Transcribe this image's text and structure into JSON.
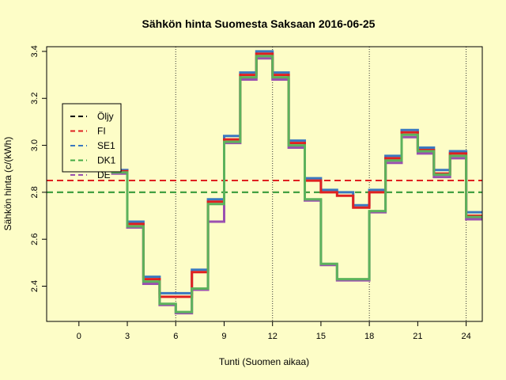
{
  "chart_data": {
    "type": "line",
    "title": "Sähkön hinta Suomesta Saksaan 2016-06-25",
    "xlabel": "Tunti (Suomen aikaa)",
    "ylabel": "Sähkön hinta (c/(kWh)",
    "xlim": [
      -2,
      25
    ],
    "ylim": [
      2.25,
      3.42
    ],
    "x_ticks": [
      0,
      3,
      6,
      9,
      12,
      15,
      18,
      21,
      24
    ],
    "y_ticks": [
      2.4,
      2.6,
      2.8,
      3.0,
      3.2,
      3.4
    ],
    "y_tick_labels": [
      "2.4",
      "2.6",
      "2.8",
      "3.0",
      "3.2",
      "3.4"
    ],
    "vlines": [
      6,
      12,
      18,
      24
    ],
    "step_x": [
      2,
      3,
      4,
      5,
      6,
      7,
      8,
      9,
      10,
      11,
      12,
      13,
      14,
      15,
      16,
      17,
      18,
      19,
      20,
      21,
      22,
      23,
      24,
      25
    ],
    "hlines": [
      {
        "name": "Öljy",
        "value": 2.8,
        "color": "#000000"
      },
      {
        "name": "FI",
        "value": 2.85,
        "color": "#df2020"
      },
      {
        "name": "DK1",
        "value": 2.8,
        "color": "#44aa44"
      }
    ],
    "series": [
      {
        "name": "SE1",
        "color": "#3a78c0",
        "values": [
          2.895,
          2.675,
          2.44,
          2.37,
          2.37,
          2.47,
          2.77,
          3.04,
          3.31,
          3.4,
          3.31,
          3.02,
          2.86,
          2.81,
          2.8,
          2.745,
          2.81,
          2.955,
          3.065,
          2.99,
          2.895,
          2.975,
          2.715
        ]
      },
      {
        "name": "DE",
        "color": "#9a50b0",
        "values": [
          2.88,
          2.65,
          2.41,
          2.32,
          2.285,
          2.385,
          2.675,
          3.01,
          3.28,
          3.37,
          3.28,
          2.99,
          2.765,
          2.49,
          2.425,
          2.425,
          2.715,
          2.925,
          3.035,
          2.965,
          2.865,
          2.945,
          2.685
        ]
      },
      {
        "name": "FI",
        "color": "#df2020",
        "values": [
          2.89,
          2.665,
          2.43,
          2.355,
          2.355,
          2.46,
          2.76,
          3.025,
          3.3,
          3.39,
          3.3,
          3.01,
          2.85,
          2.8,
          2.785,
          2.735,
          2.8,
          2.945,
          3.055,
          2.98,
          2.88,
          2.965,
          2.7
        ]
      },
      {
        "name": "DK1",
        "color": "#5cb25c",
        "values": [
          2.885,
          2.655,
          2.42,
          2.325,
          2.29,
          2.39,
          2.75,
          3.015,
          3.29,
          3.38,
          3.29,
          3.0,
          2.77,
          2.495,
          2.43,
          2.43,
          2.72,
          2.935,
          3.045,
          2.975,
          2.875,
          2.955,
          2.695
        ]
      }
    ],
    "legend": {
      "placement": "left",
      "entries": [
        {
          "label": "Öljy",
          "color": "#000000"
        },
        {
          "label": "FI",
          "color": "#df2020"
        },
        {
          "label": "SE1",
          "color": "#3a78c0"
        },
        {
          "label": "DK1",
          "color": "#44aa44"
        },
        {
          "label": "DE",
          "color": "#9a50b0"
        }
      ]
    }
  }
}
